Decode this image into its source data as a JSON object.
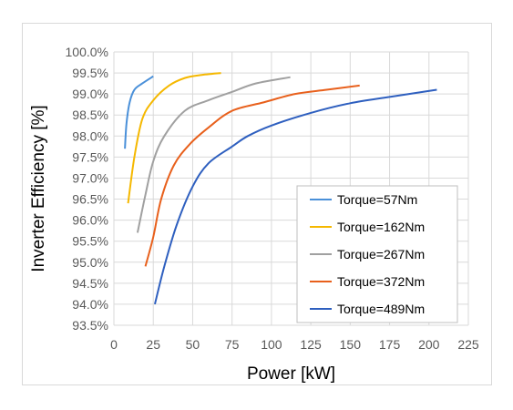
{
  "chart_data": {
    "type": "line",
    "title": "",
    "xlabel": "Power [kW]",
    "ylabel": "Inverter Efficiency [%]",
    "xlim": [
      0,
      225
    ],
    "ylim": [
      93.5,
      100.0
    ],
    "xticks": [
      "0",
      "25",
      "50",
      "75",
      "100",
      "125",
      "150",
      "175",
      "200",
      "225"
    ],
    "yticks": [
      "93.5%",
      "94.0%",
      "94.5%",
      "95.0%",
      "95.5%",
      "96.0%",
      "96.5%",
      "97.0%",
      "97.5%",
      "98.0%",
      "98.5%",
      "99.0%",
      "99.5%",
      "100.0%"
    ],
    "grid": true,
    "legend_position": "bottom-right",
    "series": [
      {
        "name": "Torque=57Nm",
        "color": "#4a90d9",
        "points": [
          [
            7,
            97.7
          ],
          [
            8,
            98.3
          ],
          [
            10,
            98.8
          ],
          [
            13,
            99.1
          ],
          [
            18,
            99.25
          ],
          [
            25,
            99.42
          ]
        ]
      },
      {
        "name": "Torque=162Nm",
        "color": "#f5b800",
        "points": [
          [
            9,
            96.4
          ],
          [
            13,
            97.5
          ],
          [
            18,
            98.4
          ],
          [
            25,
            98.85
          ],
          [
            35,
            99.2
          ],
          [
            45,
            99.38
          ],
          [
            55,
            99.45
          ],
          [
            68,
            99.5
          ]
        ]
      },
      {
        "name": "Torque=267Nm",
        "color": "#a0a0a0",
        "points": [
          [
            15,
            95.7
          ],
          [
            20,
            96.6
          ],
          [
            25,
            97.4
          ],
          [
            32,
            98.0
          ],
          [
            45,
            98.6
          ],
          [
            60,
            98.85
          ],
          [
            75,
            99.05
          ],
          [
            90,
            99.25
          ],
          [
            112,
            99.4
          ]
        ]
      },
      {
        "name": "Torque=372Nm",
        "color": "#e8601c",
        "points": [
          [
            20,
            94.9
          ],
          [
            25,
            95.6
          ],
          [
            30,
            96.5
          ],
          [
            38,
            97.3
          ],
          [
            48,
            97.8
          ],
          [
            60,
            98.2
          ],
          [
            75,
            98.6
          ],
          [
            95,
            98.8
          ],
          [
            115,
            99.0
          ],
          [
            135,
            99.1
          ],
          [
            156,
            99.2
          ]
        ]
      },
      {
        "name": "Torque=489Nm",
        "color": "#2e5fbf",
        "points": [
          [
            26,
            94.0
          ],
          [
            32,
            94.9
          ],
          [
            40,
            95.9
          ],
          [
            50,
            96.8
          ],
          [
            60,
            97.35
          ],
          [
            75,
            97.75
          ],
          [
            85,
            98.0
          ],
          [
            100,
            98.25
          ],
          [
            125,
            98.55
          ],
          [
            150,
            98.78
          ],
          [
            175,
            98.93
          ],
          [
            205,
            99.1
          ]
        ]
      }
    ]
  }
}
